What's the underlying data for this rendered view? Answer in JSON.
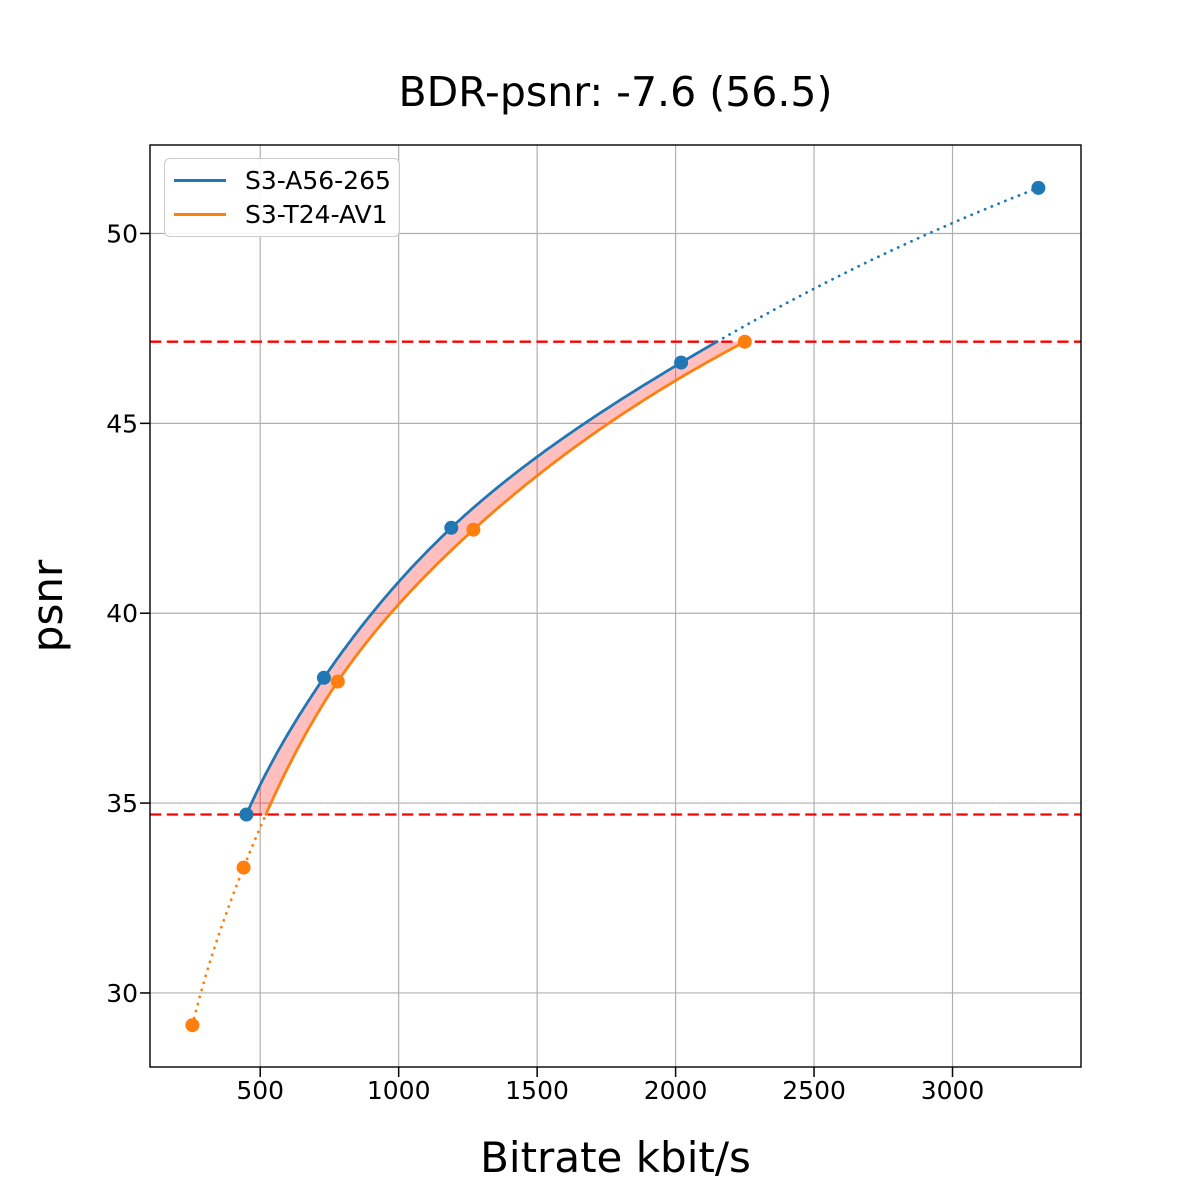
{
  "chart_data": {
    "type": "line",
    "title": "BDR-psnr: -7.6 (56.5)",
    "xlabel": "Bitrate kbit/s",
    "ylabel": "psnr",
    "xlim": [
      102,
      3464
    ],
    "ylim": [
      28.05,
      52.33
    ],
    "xticks": [
      500,
      1000,
      1500,
      2000,
      2500,
      3000
    ],
    "yticks": [
      30,
      35,
      40,
      45,
      50
    ],
    "grid": true,
    "grid_color": "#b0b0b0",
    "legend_position": "upper-left",
    "series": [
      {
        "name": "S3-A56-265",
        "color": "#1f77b4",
        "x": [
          450,
          730,
          1190,
          2020,
          3310
        ],
        "y": [
          34.7,
          38.3,
          42.25,
          46.6,
          51.2
        ]
      },
      {
        "name": "S3-T24-AV1",
        "color": "#ff7f0e",
        "x": [
          255,
          440,
          780,
          1270,
          2250
        ],
        "y": [
          29.15,
          33.3,
          38.2,
          42.2,
          47.15
        ]
      }
    ],
    "overlap_lines": {
      "values": [
        34.7,
        47.15
      ],
      "color": "#ff0000",
      "style": "dashed"
    },
    "fill_between": {
      "color": "#ff0000",
      "alpha": 0.25
    },
    "line_style_note": "curves solid inside overlap psnr range [34.7, 47.15], dotted outside; monotone-cubic interpolation in log-bitrate"
  }
}
